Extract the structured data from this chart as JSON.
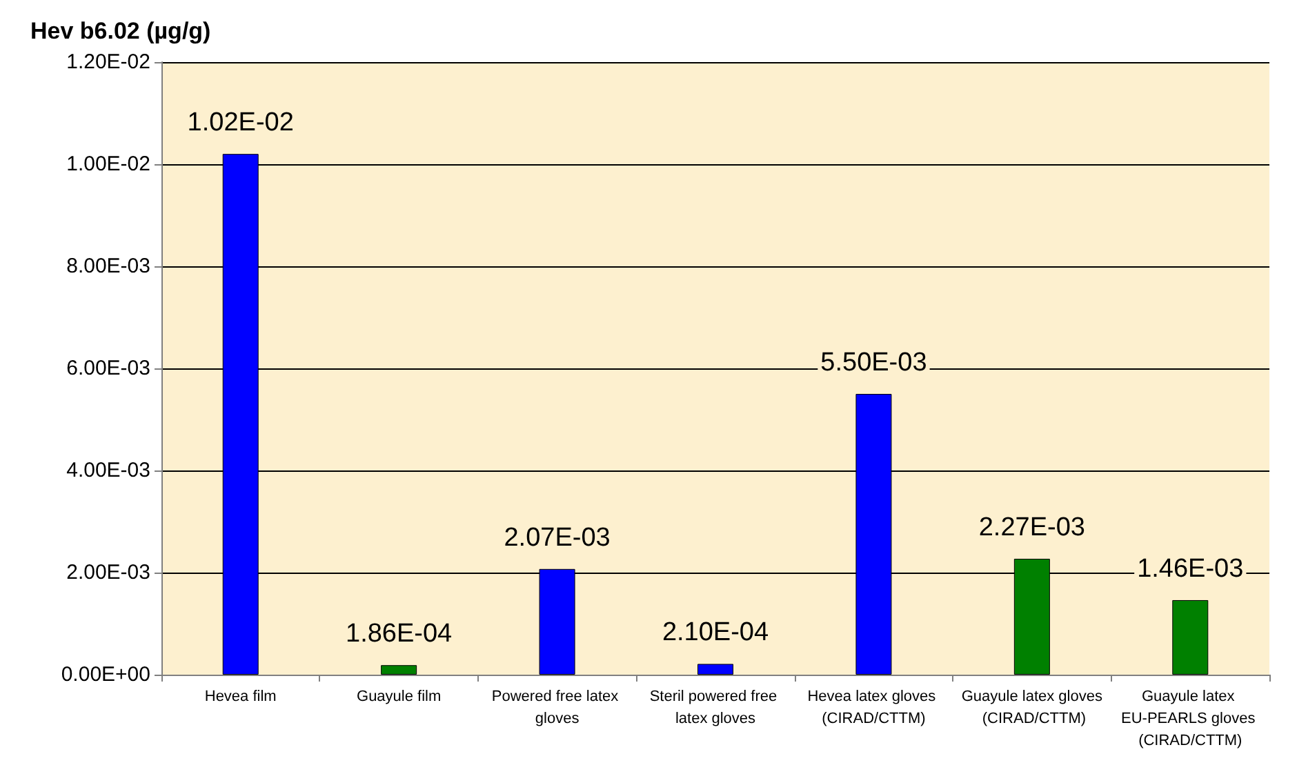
{
  "chart_data": {
    "type": "bar",
    "ylabel": "Hev b6.02 (µg/g)",
    "categories": [
      "Hevea film",
      "Guayule film",
      "Powered free latex gloves",
      "Steril powered free latex gloves",
      "Hevea latex gloves (CIRAD/CTTM)",
      "Guayule latex gloves (CIRAD/CTTM)",
      "Guayule latex EU-PEARLS gloves (CIRAD/CTTM)"
    ],
    "values": [
      0.0102,
      0.000186,
      0.00207,
      0.00021,
      0.0055,
      0.00227,
      0.00146
    ],
    "colors": [
      "#0000ff",
      "#008000",
      "#0000ff",
      "#0000ff",
      "#0000ff",
      "#008000",
      "#008000"
    ],
    "value_labels": [
      "1.02E-02",
      "1.86E-04",
      "2.07E-03",
      "2.10E-04",
      "5.50E-03",
      "2.27E-03",
      "1.46E-03"
    ],
    "ylim": [
      0,
      0.012
    ],
    "yticks": [
      {
        "value": 0,
        "label": "0.00E+00"
      },
      {
        "value": 0.002,
        "label": "2.00E-03"
      },
      {
        "value": 0.004,
        "label": "4.00E-03"
      },
      {
        "value": 0.006,
        "label": "6.00E-03"
      },
      {
        "value": 0.008,
        "label": "8.00E-03"
      },
      {
        "value": 0.01,
        "label": "1.00E-02"
      },
      {
        "value": 0.012,
        "label": "1.20E-02"
      }
    ],
    "grid": "y"
  }
}
